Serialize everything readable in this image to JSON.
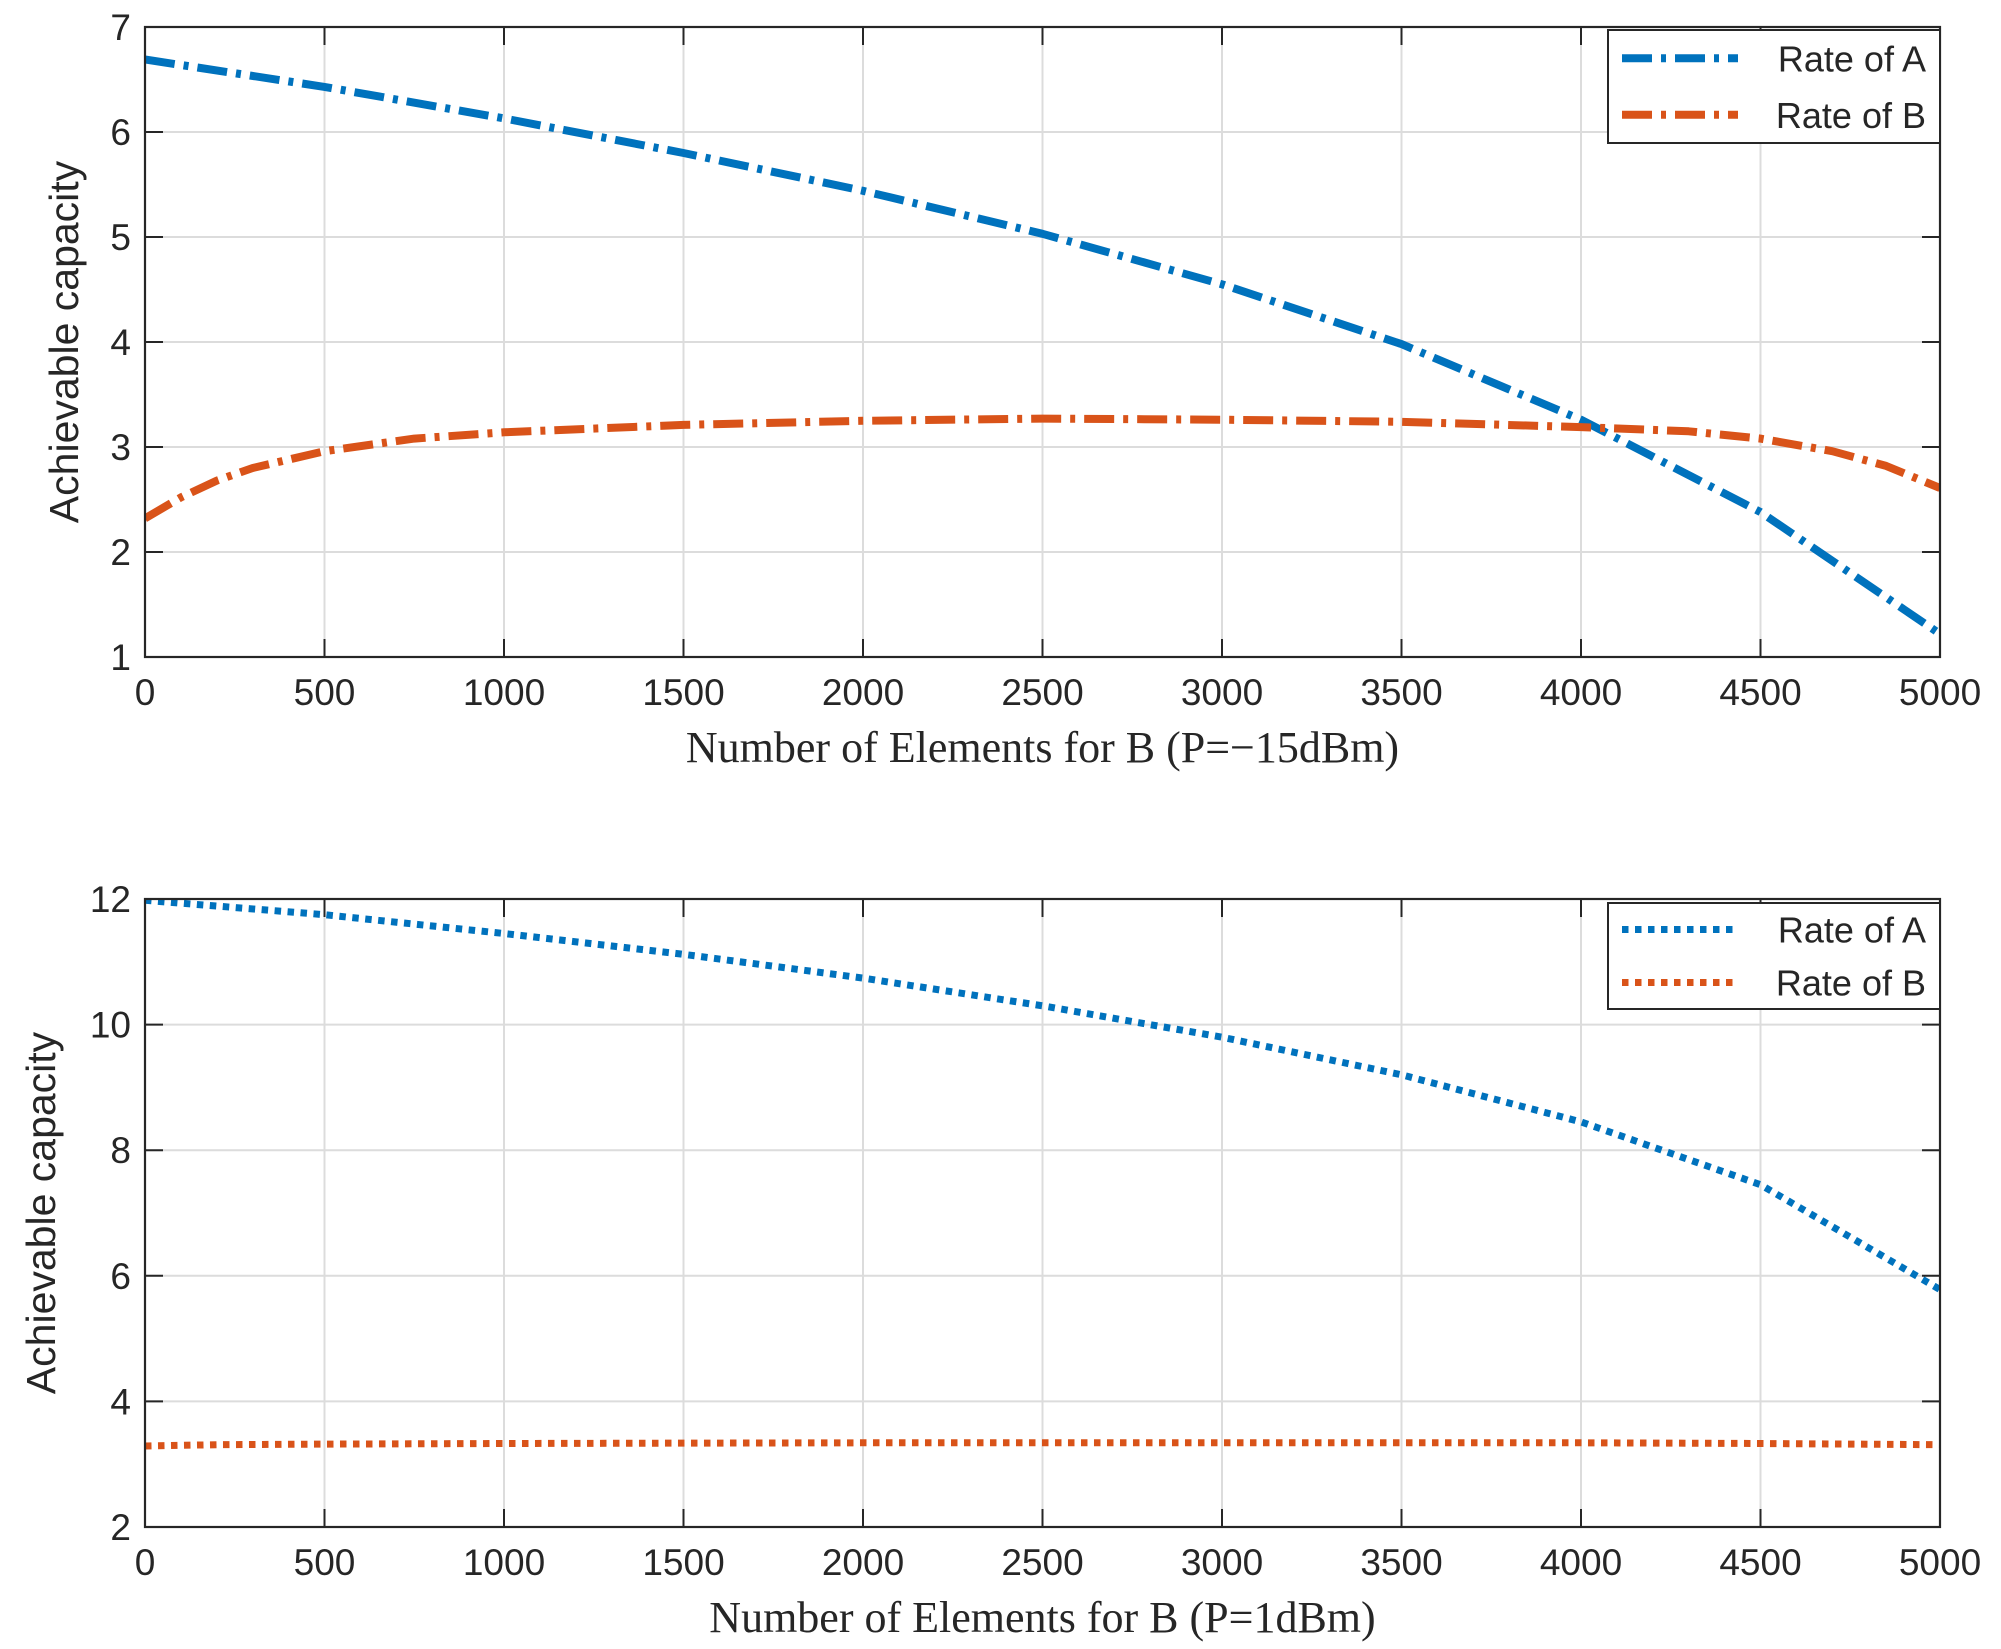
{
  "chart_data": [
    {
      "type": "line",
      "xlabel": "Number of Elements for B (P=−15dBm)",
      "ylabel": "Achievable capacity",
      "xlim": [
        0,
        5000
      ],
      "ylim": [
        1,
        7
      ],
      "xticks": [
        0,
        500,
        1000,
        1500,
        2000,
        2500,
        3000,
        3500,
        4000,
        4500,
        5000
      ],
      "yticks": [
        1,
        2,
        3,
        4,
        5,
        6,
        7
      ],
      "grid": true,
      "legend_position": "top-right",
      "line_style": "dash-dot",
      "series": [
        {
          "name": "Rate of A",
          "color": "#0072BD",
          "x": [
            0,
            500,
            1000,
            1500,
            2000,
            2500,
            3000,
            3500,
            4000,
            4500,
            5000
          ],
          "values": [
            6.69,
            6.43,
            6.13,
            5.8,
            5.44,
            5.03,
            4.55,
            3.98,
            3.26,
            2.38,
            1.22
          ]
        },
        {
          "name": "Rate of B",
          "color": "#D95319",
          "x": [
            0,
            100,
            200,
            300,
            500,
            750,
            1000,
            1500,
            2000,
            2500,
            3000,
            3500,
            4000,
            4300,
            4500,
            4700,
            4850,
            5000
          ],
          "values": [
            2.32,
            2.52,
            2.68,
            2.8,
            2.96,
            3.08,
            3.14,
            3.21,
            3.25,
            3.27,
            3.26,
            3.24,
            3.19,
            3.15,
            3.08,
            2.96,
            2.82,
            2.61
          ]
        }
      ]
    },
    {
      "type": "line",
      "xlabel": "Number of Elements for B (P=1dBm)",
      "ylabel": "Achievable capacity",
      "xlim": [
        0,
        5000
      ],
      "ylim": [
        2,
        12
      ],
      "xticks": [
        0,
        500,
        1000,
        1500,
        2000,
        2500,
        3000,
        3500,
        4000,
        4500,
        5000
      ],
      "yticks": [
        2,
        4,
        6,
        8,
        10,
        12
      ],
      "grid": true,
      "legend_position": "top-right",
      "line_style": "dotted",
      "series": [
        {
          "name": "Rate of A",
          "color": "#0072BD",
          "x": [
            0,
            500,
            1000,
            1500,
            2000,
            2500,
            3000,
            3500,
            4000,
            4500,
            5000
          ],
          "values": [
            11.98,
            11.75,
            11.45,
            11.12,
            10.74,
            10.3,
            9.8,
            9.2,
            8.45,
            7.45,
            5.78
          ]
        },
        {
          "name": "Rate of B",
          "color": "#D95319",
          "x": [
            0,
            200,
            500,
            1000,
            2000,
            3000,
            4000,
            4500,
            5000
          ],
          "values": [
            3.29,
            3.31,
            3.32,
            3.33,
            3.34,
            3.34,
            3.34,
            3.33,
            3.31
          ]
        }
      ]
    }
  ]
}
